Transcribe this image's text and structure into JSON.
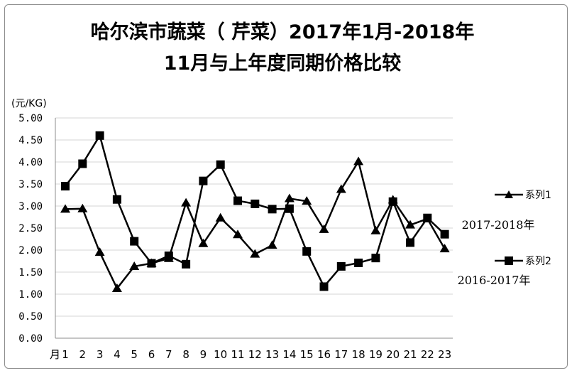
{
  "chart_data": {
    "type": "line",
    "title_line1": "哈尔滨市蔬菜（ 芹菜）2017年1月-2018年",
    "title_line2": "11月与上年度同期价格比较",
    "ylabel": "(元/KG)",
    "ylim": [
      0,
      5
    ],
    "ytick_step": 0.5,
    "yticks": [
      "0.00",
      "0.50",
      "1.00",
      "1.50",
      "2.00",
      "2.50",
      "3.00",
      "3.50",
      "4.00",
      "4.50",
      "5.00"
    ],
    "x_prefix": "月",
    "x": [
      "1",
      "2",
      "3",
      "4",
      "5",
      "6",
      "7",
      "8",
      "9",
      "10",
      "11",
      "12",
      "13",
      "14",
      "15",
      "16",
      "17",
      "18",
      "19",
      "20",
      "21",
      "22",
      "23"
    ],
    "grid": "horizontal",
    "legend_position": "right",
    "series": [
      {
        "name": "系列1",
        "marker": "triangle",
        "note": "2017-2018年",
        "values": [
          2.93,
          2.94,
          1.95,
          1.13,
          1.63,
          1.7,
          1.81,
          3.07,
          2.15,
          2.73,
          2.35,
          1.91,
          2.11,
          3.17,
          3.11,
          2.47,
          3.38,
          4.01,
          2.44,
          3.14,
          2.57,
          2.71,
          2.03
        ]
      },
      {
        "name": "系列2",
        "marker": "square",
        "note": "2016-2017年",
        "values": [
          3.45,
          3.96,
          4.6,
          3.15,
          2.2,
          1.7,
          1.87,
          1.68,
          3.57,
          3.94,
          3.12,
          3.05,
          2.93,
          2.94,
          1.97,
          1.17,
          1.63,
          1.71,
          1.82,
          3.1,
          2.17,
          2.73,
          2.36
        ]
      }
    ]
  }
}
